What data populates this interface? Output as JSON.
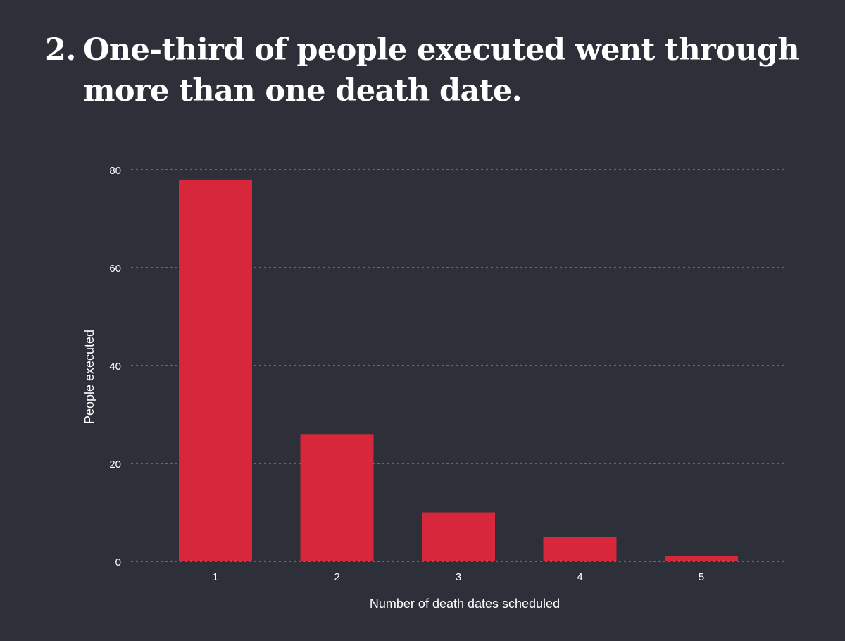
{
  "title": {
    "number": "2.",
    "text": "One-third of people executed went through more than one death date."
  },
  "chart_data": {
    "type": "bar",
    "xlabel": "Number of death dates scheduled",
    "ylabel": "People executed",
    "categories": [
      "1",
      "2",
      "3",
      "4",
      "5"
    ],
    "values": [
      78,
      26,
      10,
      5,
      1
    ],
    "ylim": [
      0,
      80
    ],
    "yticks": [
      "0",
      "20",
      "40",
      "60",
      "80"
    ],
    "grid": true,
    "colors": {
      "bar": "#d7283b",
      "grid": "#8a8d94",
      "text": "#ffffff",
      "background": "#2d3038"
    }
  }
}
